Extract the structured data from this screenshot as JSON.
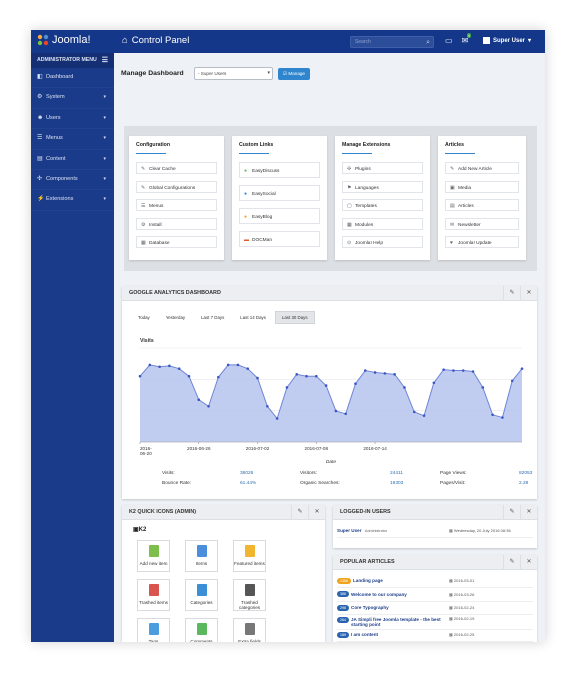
{
  "header": {
    "logo_text": "Joomla!",
    "page_title": "Control Panel",
    "search_placeholder": "Search",
    "notification_count": "4",
    "user_label": "Super User"
  },
  "sidebar": {
    "menu_title": "ADMINISTRATOR MENU",
    "items": [
      {
        "label": "Dashboard",
        "icon": "dashboard-icon",
        "has_submenu": false
      },
      {
        "label": "System",
        "icon": "gear-icon",
        "has_submenu": true
      },
      {
        "label": "Users",
        "icon": "users-icon",
        "has_submenu": true
      },
      {
        "label": "Menus",
        "icon": "list-icon",
        "has_submenu": true
      },
      {
        "label": "Content",
        "icon": "file-icon",
        "has_submenu": true
      },
      {
        "label": "Components",
        "icon": "cubes-icon",
        "has_submenu": true
      },
      {
        "label": "Extensions",
        "icon": "plug-icon",
        "has_submenu": true
      }
    ]
  },
  "dashboard": {
    "label": "Manage Dashboard",
    "select_value": "- Super Users",
    "manage_button": "Manage"
  },
  "quick_panels": [
    {
      "title": "Configuration",
      "items": [
        "Clear Cache",
        "Global Configurations",
        "Menus",
        "Install",
        "Database"
      ]
    },
    {
      "title": "Custom Links",
      "items": [
        "EasyDiscuss",
        "EasySocial",
        "EasyBlog",
        "DOCMan"
      ]
    },
    {
      "title": "Manage Extensions",
      "items": [
        "Plugins",
        "Languages",
        "Templates",
        "Modules",
        "Joomla! Help"
      ]
    },
    {
      "title": "Articles",
      "items": [
        "Add New Article",
        "Media",
        "Articles",
        "Newsletter",
        "Joomla! Update"
      ]
    }
  ],
  "analytics": {
    "title": "GOOGLE ANALYTICS DASHBOARD",
    "tabs": [
      "Today",
      "Yesterday",
      "Last 7 Days",
      "Last 14 Days",
      "Last 30 Days"
    ],
    "active_tab": 4,
    "stats": [
      {
        "label": "Visits:",
        "value": "36026"
      },
      {
        "label": "Visitors:",
        "value": "24411"
      },
      {
        "label": "Page Views:",
        "value": "82053"
      },
      {
        "label": "Bounce Rate:",
        "value": "61.44%"
      },
      {
        "label": "Organic Searches:",
        "value": "19303"
      },
      {
        "label": "Pages/Visit:",
        "value": "2.28"
      }
    ]
  },
  "chart_data": {
    "type": "area",
    "title": "",
    "series": [
      {
        "name": "Visits",
        "values": [
          1300,
          1420,
          1400,
          1410,
          1380,
          1300,
          1050,
          980,
          1290,
          1420,
          1420,
          1380,
          1280,
          980,
          850,
          1180,
          1320,
          1300,
          1300,
          1200,
          930,
          900,
          1220,
          1360,
          1340,
          1330,
          1320,
          1180,
          920,
          880,
          1230,
          1370,
          1360,
          1360,
          1350,
          1180,
          890,
          860,
          1250,
          1380
        ]
      }
    ],
    "x_ticks": [
      "2016-06-20",
      "2016-06-26",
      "2016-07-02",
      "2016-07-08",
      "2016-07-14"
    ],
    "xlabel": "Date",
    "color": "#6e85d6"
  },
  "k2": {
    "title": "K2 QUICK ICONS (ADMIN)",
    "logo": "K2",
    "tiles": [
      {
        "label": "Add new item",
        "color": "#7cbf4a"
      },
      {
        "label": "Items",
        "color": "#4b8fdc"
      },
      {
        "label": "Featured items",
        "color": "#f2b530"
      },
      {
        "label": "Trashed items",
        "color": "#d9534f"
      },
      {
        "label": "Categories",
        "color": "#3a8fd6"
      },
      {
        "label": "Trashed categories",
        "color": "#555555"
      },
      {
        "label": "Tags",
        "color": "#4a9ee0"
      },
      {
        "label": "Comments",
        "color": "#5cb85c"
      },
      {
        "label": "Extra fields",
        "color": "#777777"
      }
    ]
  },
  "logged_in": {
    "title": "LOGGED-IN USERS",
    "users": [
      {
        "name": "Super User",
        "role": "Administrator",
        "date": "Wednesday, 20 July 2016 08:36"
      }
    ]
  },
  "popular": {
    "title": "POPULAR ARTICLES",
    "articles": [
      {
        "hits": "1366",
        "title": "Landing page",
        "date": "2016-03-01",
        "badge_color": "#f0a31c"
      },
      {
        "hits": "388",
        "title": "Welcome to our company",
        "date": "2016-03-26",
        "badge_color": "#2a64b0"
      },
      {
        "hits": "298",
        "title": "Core Typography",
        "date": "2016-02-24",
        "badge_color": "#2a64b0"
      },
      {
        "hits": "264",
        "title": "JA Simpli free Joomla template - the best starting point",
        "date": "2016-02-19",
        "badge_color": "#2a64b0"
      },
      {
        "hits": "189",
        "title": "I am content",
        "date": "2016-02-25",
        "badge_color": "#2a64b0"
      }
    ]
  }
}
